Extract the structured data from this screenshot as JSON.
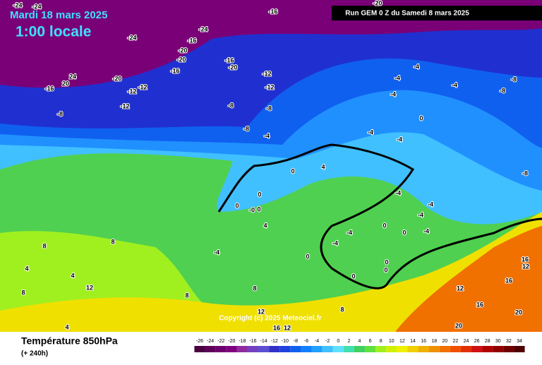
{
  "header": {
    "date": "Mardi 18 mars 2025",
    "time": "1:00 locale",
    "run": "Run GEM 0 Z du Samedi 8 mars 2025"
  },
  "footer": {
    "title": "Température 850hPa",
    "lead": "(+ 240h)",
    "copyright": "Copyright (c) 2025 Meteociel.fr"
  },
  "colorbar": {
    "labels": [
      -26,
      -24,
      -22,
      -20,
      -18,
      -16,
      -14,
      -12,
      -10,
      -8,
      -6,
      -4,
      -2,
      0,
      2,
      4,
      6,
      8,
      10,
      12,
      14,
      16,
      18,
      20,
      22,
      24,
      26,
      28,
      30,
      32,
      34
    ],
    "colors": [
      "#4a0040",
      "#5e0058",
      "#6e006e",
      "#80007f",
      "#8f2aa0",
      "#7440c0",
      "#5a4ed2",
      "#3030c8",
      "#2040e0",
      "#1060f0",
      "#1080ff",
      "#20a0ff",
      "#40c0ff",
      "#60e0ff",
      "#40e0b0",
      "#40d060",
      "#60e040",
      "#a0f020",
      "#d0f000",
      "#f0f000",
      "#f0d000",
      "#f0b000",
      "#f09000",
      "#f07000",
      "#f05000",
      "#e03000",
      "#d01010",
      "#b00000",
      "#900000",
      "#700000",
      "#500000"
    ]
  },
  "map_labels": [
    "-24",
    "-24",
    "-20",
    "-16",
    "-24",
    "-24",
    "-16",
    "-20",
    "-20",
    "-16",
    "-16",
    "-20",
    "-20",
    "-12",
    "-12",
    "24",
    "20",
    "-16",
    "-12",
    "-12",
    "-12",
    "-8",
    "-8",
    "-8",
    "-8",
    "-4",
    "-4",
    "-4",
    "-8",
    "-8",
    "-4",
    "-4",
    "-4",
    "-4",
    "0",
    "-8",
    "0",
    "4",
    "0",
    "0",
    "-0",
    "0",
    "4",
    "-4",
    "-4",
    "-4",
    "-4",
    "-4",
    "-4",
    "0",
    "0",
    "0",
    "0",
    "0",
    "0",
    "8",
    "8",
    "4",
    "4",
    "8",
    "12",
    "-4",
    "8",
    "8",
    "4",
    "8",
    "12",
    "12",
    "16",
    "16",
    "12",
    "16",
    "20",
    "20",
    "16",
    "12"
  ]
}
